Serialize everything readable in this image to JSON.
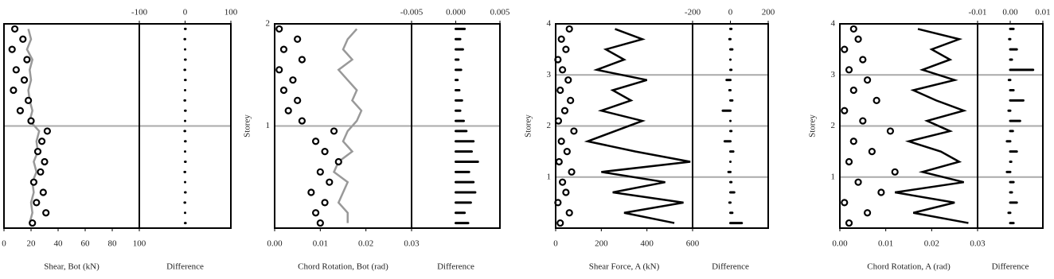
{
  "chart_data": [
    {
      "type": "scatter",
      "x_label": "Shear, Bot (kN)",
      "diff_label": "Difference",
      "line_color": "#999999",
      "xlim": [
        0,
        100
      ],
      "xticks": [
        0,
        20,
        40,
        60,
        80,
        100
      ],
      "diff_xlim": [
        -100,
        100
      ],
      "diff_xticks": [
        -100,
        0,
        100
      ],
      "ylim": [
        0,
        2
      ],
      "hlines": [
        1
      ],
      "y": [
        1.95,
        1.85,
        1.75,
        1.65,
        1.55,
        1.45,
        1.35,
        1.25,
        1.15,
        1.05,
        0.95,
        0.85,
        0.75,
        0.65,
        0.55,
        0.45,
        0.35,
        0.25,
        0.15,
        0.05
      ],
      "points": [
        8,
        14,
        6,
        17,
        9,
        15,
        7,
        18,
        12,
        20,
        32,
        28,
        25,
        30,
        27,
        22,
        29,
        24,
        31,
        21
      ],
      "line": [
        18,
        20,
        17,
        21,
        19,
        20,
        18,
        19,
        21,
        19,
        26,
        24,
        25,
        22,
        24,
        21,
        22,
        20,
        21,
        19
      ],
      "difference": [
        1,
        -1,
        0,
        1,
        -1,
        1,
        0,
        -1,
        1,
        0,
        -1,
        1,
        0,
        1,
        -1,
        0,
        1,
        -1,
        0,
        1
      ]
    },
    {
      "type": "scatter",
      "x_label": "Chord Rotation, Bot (rad)",
      "diff_label": "Difference",
      "y_label": "Storey",
      "line_color": "#999999",
      "xlim": [
        0,
        0.03
      ],
      "xticks": [
        {
          "value": 0,
          "label": "0.00"
        },
        0.01,
        0.02,
        0.03
      ],
      "diff_xlim": [
        -0.005,
        0.005
      ],
      "diff_xticks": [
        -0.005,
        {
          "value": 0,
          "label": "0.000"
        },
        0.005
      ],
      "ylim": [
        0,
        2
      ],
      "yticks": [
        1,
        2
      ],
      "y": [
        1.95,
        1.85,
        1.75,
        1.65,
        1.55,
        1.45,
        1.35,
        1.25,
        1.15,
        1.05,
        0.95,
        0.85,
        0.75,
        0.65,
        0.55,
        0.45,
        0.35,
        0.25,
        0.15,
        0.05
      ],
      "points": [
        0.001,
        0.005,
        0.002,
        0.006,
        0.001,
        0.004,
        0.002,
        0.005,
        0.003,
        0.006,
        0.013,
        0.009,
        0.011,
        0.014,
        0.01,
        0.012,
        0.008,
        0.011,
        0.009,
        0.01
      ],
      "line": [
        0.018,
        0.016,
        0.015,
        0.017,
        0.014,
        0.016,
        0.018,
        0.017,
        0.019,
        0.018,
        0.016,
        0.015,
        0.017,
        0.014,
        0.013,
        0.016,
        0.015,
        0.014,
        0.016,
        0.016
      ],
      "difference": [
        0.001,
        0.0005,
        0.0008,
        0.0003,
        0.0006,
        0.0002,
        0.0004,
        0.0007,
        0.0005,
        0.0009,
        0.0012,
        0.002,
        0.0018,
        0.0025,
        0.0015,
        0.002,
        0.0022,
        0.0017,
        0.001,
        0.0014
      ]
    },
    {
      "type": "scatter",
      "x_label": "Shear Force, A (kN)",
      "diff_label": "Difference",
      "y_label": "Storey",
      "line_color": "#000000",
      "xlim": [
        0,
        600
      ],
      "xticks": [
        0,
        200,
        400,
        600
      ],
      "diff_xlim": [
        -200,
        200
      ],
      "diff_xticks": [
        -200,
        0,
        200
      ],
      "ylim": [
        0,
        4
      ],
      "yticks": [
        1,
        2,
        3,
        4
      ],
      "y": [
        0.1,
        0.3,
        0.5,
        0.7,
        0.9,
        1.1,
        1.3,
        1.5,
        1.7,
        1.9,
        2.1,
        2.3,
        2.5,
        2.7,
        2.9,
        3.1,
        3.3,
        3.5,
        3.7,
        3.9
      ],
      "points": [
        20,
        60,
        10,
        45,
        30,
        70,
        15,
        50,
        25,
        80,
        12,
        40,
        65,
        20,
        55,
        30,
        10,
        45,
        25,
        60
      ],
      "line": [
        520,
        300,
        560,
        250,
        480,
        200,
        590,
        350,
        140,
        260,
        380,
        200,
        330,
        250,
        400,
        180,
        300,
        220,
        380,
        260
      ],
      "difference": [
        60,
        10,
        -5,
        20,
        5,
        -10,
        0,
        15,
        -30,
        5,
        0,
        -40,
        10,
        -5,
        -20,
        5,
        0,
        10,
        -5,
        5
      ]
    },
    {
      "type": "scatter",
      "x_label": "Chord Rotation, A (rad)",
      "diff_label": "Difference",
      "y_label": "Storey",
      "line_color": "#000000",
      "xlim": [
        0,
        0.03
      ],
      "xticks": [
        {
          "value": 0,
          "label": "0.00"
        },
        0.01,
        0.02,
        0.03
      ],
      "diff_xlim": [
        -0.01,
        0.01
      ],
      "diff_xticks": [
        -0.01,
        {
          "value": 0,
          "label": "0.00"
        },
        0.01
      ],
      "ylim": [
        0,
        4
      ],
      "yticks": [
        1,
        2,
        3,
        4
      ],
      "y": [
        0.1,
        0.3,
        0.5,
        0.7,
        0.9,
        1.1,
        1.3,
        1.5,
        1.7,
        1.9,
        2.1,
        2.3,
        2.5,
        2.7,
        2.9,
        3.1,
        3.3,
        3.5,
        3.7,
        3.9
      ],
      "points": [
        0.002,
        0.006,
        0.001,
        0.009,
        0.004,
        0.012,
        0.002,
        0.007,
        0.003,
        0.011,
        0.005,
        0.001,
        0.008,
        0.003,
        0.006,
        0.002,
        0.005,
        0.001,
        0.004,
        0.003
      ],
      "line": [
        0.028,
        0.016,
        0.025,
        0.012,
        0.027,
        0.018,
        0.026,
        0.022,
        0.015,
        0.024,
        0.019,
        0.027,
        0.021,
        0.016,
        0.025,
        0.018,
        0.024,
        0.02,
        0.026,
        0.017
      ],
      "difference": [
        0.001,
        -0.0005,
        0.002,
        0.0005,
        0.001,
        -0.001,
        0.0003,
        0.002,
        -0.001,
        0.0008,
        0.003,
        -0.0005,
        0.004,
        0.001,
        -0.0004,
        0.007,
        0.0005,
        0.002,
        -0.0003,
        0.001
      ]
    }
  ]
}
